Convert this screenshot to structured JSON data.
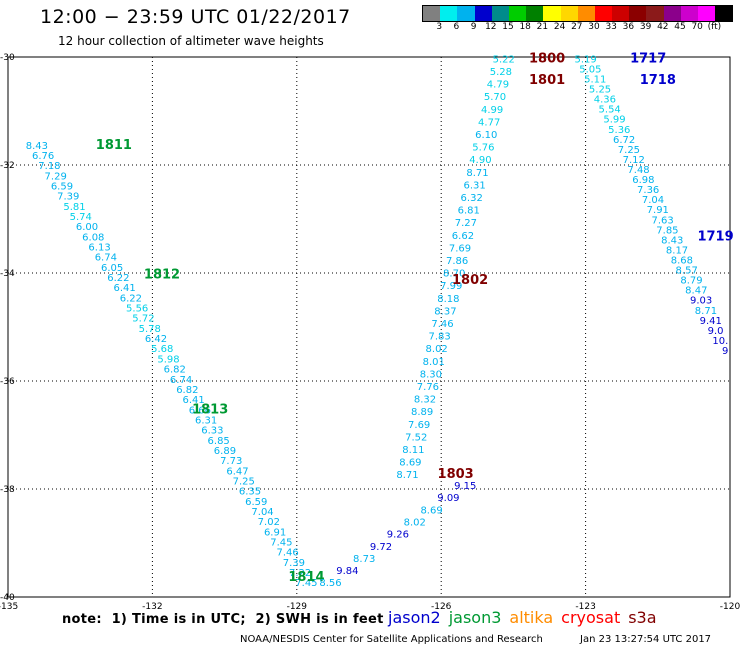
{
  "title": "12:00 − 23:59 UTC 01/22/2017",
  "subtitle": "12 hour collection of altimeter wave heights",
  "colorbar": {
    "colors": [
      "#808080",
      "#00eeee",
      "#00b2ee",
      "#0000cd",
      "#008b8b",
      "#00cd00",
      "#008000",
      "#ffff00",
      "#ffd700",
      "#ff8c00",
      "#ff0000",
      "#cd0000",
      "#8b0000",
      "#8b1a1a",
      "#8b008b",
      "#cd00cd",
      "#ff00ff",
      "#000000"
    ],
    "labels": [
      "3",
      "6",
      "9",
      "12",
      "15",
      "18",
      "21",
      "24",
      "27",
      "30",
      "33",
      "36",
      "39",
      "42",
      "45",
      "70",
      "(ft)"
    ]
  },
  "axes": {
    "lon_ticks": [
      "-135",
      "-132",
      "-129",
      "-126",
      "-123",
      "-120"
    ],
    "lat_ticks": [
      "-30",
      "-32",
      "-34",
      "-36",
      "-38",
      "-40"
    ],
    "lon_range": [
      -135,
      -120
    ],
    "lat_range": [
      -40,
      -30
    ]
  },
  "tracks": [
    {
      "satellite": "jason3",
      "color": "#009933",
      "lon_start": -134.4,
      "lat_start": -31.7,
      "lon_end": -128.8,
      "lat_end": -39.8,
      "values": [
        "8.43",
        "6.76",
        "7.18",
        "7.29",
        "6.59",
        "7.39",
        "5.81",
        "5.74",
        "6.00",
        "6.08",
        "6.13",
        "6.74",
        "6.05",
        "6.22",
        "6.41",
        "6.22",
        "5.56",
        "5.72",
        "5.78",
        "6.42",
        "5.68",
        "5.98",
        "6.82",
        "6.74",
        "6.82",
        "6.41",
        "6.66",
        "6.31",
        "6.33",
        "6.85",
        "6.89",
        "7.73",
        "6.47",
        "7.25",
        "6.35",
        "6.59",
        "7.04",
        "7.02",
        "6.91",
        "7.45",
        "7.46",
        "7.39",
        "7.22",
        "7.45"
      ],
      "time_labels": [
        {
          "text": "1811",
          "lon": -132.8,
          "lat": -31.7
        },
        {
          "text": "1812",
          "lon": -131.8,
          "lat": -34.1
        },
        {
          "text": "1813",
          "lon": -130.8,
          "lat": -36.6
        },
        {
          "text": "1814",
          "lon": -128.8,
          "lat": -39.7
        }
      ]
    },
    {
      "satellite": "jason2",
      "color": "#0000cc",
      "lon_start": -128.3,
      "lat_start": -39.8,
      "lon_end": -125.5,
      "lat_end": -38.0,
      "values": [
        "8.56",
        "9.84",
        "8.73",
        "9.72",
        "9.26",
        "8.02",
        "8.69",
        "9.09",
        "9.15"
      ],
      "time_labels": []
    },
    {
      "satellite": "s3a",
      "color": "#800000",
      "lon_start": -126.7,
      "lat_start": -37.8,
      "lon_end": -124.7,
      "lat_end": -30.1,
      "values": [
        "8.71",
        "8.69",
        "8.11",
        "7.52",
        "7.69",
        "8.89",
        "8.32",
        "7.76",
        "8.30",
        "8.01",
        "8.02",
        "7.83",
        "7.46",
        "8.37",
        "8.18",
        "7.99",
        "8.70",
        "7.86",
        "7.69",
        "6.62",
        "7.27",
        "6.81",
        "6.32",
        "6.31",
        "8.71",
        "4.90",
        "5.76",
        "6.10",
        "4.77",
        "4.99",
        "5.70",
        "4.79",
        "5.28",
        "5.22"
      ],
      "time_labels": [
        {
          "text": "1803",
          "lon": -125.7,
          "lat": -37.8
        },
        {
          "text": "1802",
          "lon": -125.4,
          "lat": -34.2
        },
        {
          "text": "1801",
          "lon": -123.8,
          "lat": -30.5
        },
        {
          "text": "1800",
          "lon": -123.8,
          "lat": -30.1
        }
      ]
    },
    {
      "satellite": "jason2",
      "color": "#0000cc",
      "lon_start": -123.0,
      "lat_start": -30.1,
      "lon_end": -120.1,
      "lat_end": -35.5,
      "values": [
        "5.19",
        "5.05",
        "5.11",
        "5.25",
        "4.36",
        "5.54",
        "5.99",
        "5.36",
        "6.72",
        "7.25",
        "7.12",
        "7.48",
        "6.98",
        "7.36",
        "7.04",
        "7.91",
        "7.63",
        "7.85",
        "8.43",
        "8.17",
        "8.68",
        "8.57",
        "8.79",
        "8.47",
        "9.03",
        "8.71",
        "9.41",
        "9.0",
        "10.",
        "9"
      ],
      "time_labels": [
        {
          "text": "1717",
          "lon": -121.7,
          "lat": -30.1
        },
        {
          "text": "1718",
          "lon": -121.5,
          "lat": -30.5
        },
        {
          "text": "1719",
          "lon": -120.3,
          "lat": -33.4
        }
      ]
    }
  ],
  "footer": {
    "note": "note:  1) Time is in UTC;  2) SWH is in feet",
    "legend": [
      {
        "name": "jason2",
        "color": "#0000cc"
      },
      {
        "name": "jason3",
        "color": "#009933"
      },
      {
        "name": "altika",
        "color": "#ff8c00"
      },
      {
        "name": "cryosat",
        "color": "#ff0000"
      },
      {
        "name": "s3a",
        "color": "#800000"
      }
    ],
    "credit": "NOAA/NESDIS Center for Satellite Applications and Research",
    "timestamp": "Jan 23 13:27:54 UTC 2017"
  }
}
